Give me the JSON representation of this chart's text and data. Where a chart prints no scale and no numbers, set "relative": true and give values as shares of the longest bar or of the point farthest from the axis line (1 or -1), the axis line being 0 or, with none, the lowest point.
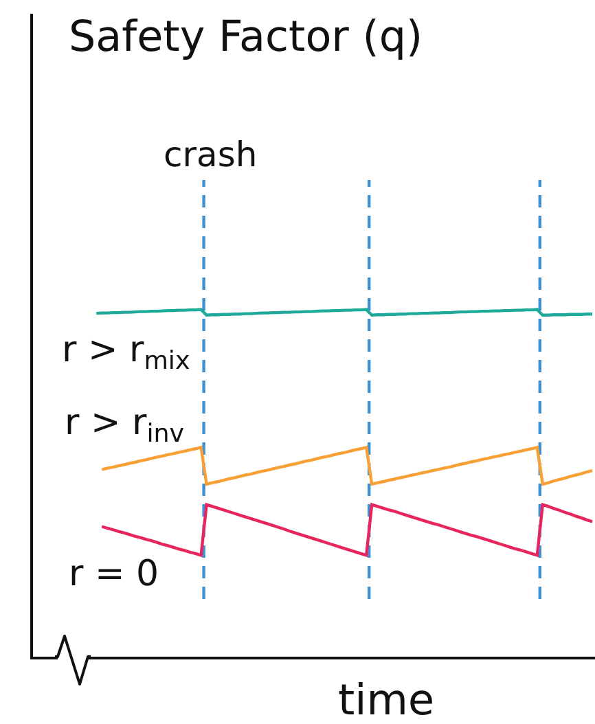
{
  "chart_data": {
    "type": "line",
    "title": "Safety Factor (q)",
    "xlabel": "time",
    "relative": true,
    "annotations": [
      "crash"
    ],
    "categories": [
      null,
      null,
      null,
      null,
      null,
      null,
      null,
      null,
      null,
      null,
      null,
      null,
      null,
      null,
      null,
      null,
      null,
      null,
      null,
      null,
      null,
      null,
      null,
      null,
      null,
      null,
      null,
      null,
      null,
      null,
      null,
      null,
      null,
      null,
      null,
      null,
      null,
      null,
      null,
      null,
      null,
      null,
      null,
      null,
      null,
      null,
      null,
      null,
      null,
      null,
      null,
      null,
      null,
      null,
      null,
      null,
      null,
      null,
      null,
      null,
      null,
      null,
      null,
      null,
      null,
      null,
      null,
      null,
      null,
      null,
      null,
      null,
      null,
      null,
      null,
      null,
      null,
      null,
      null,
      null,
      null,
      null,
      null,
      null,
      null,
      null,
      null,
      null,
      null,
      null,
      null,
      null,
      null,
      null,
      null,
      null,
      null,
      null,
      null,
      null,
      null,
      null
    ],
    "series": [
      {
        "name": "r > r$_{mix}$",
        "color": "#1fa99b",
        "values": [
          null,
          null,
          null,
          null,
          null,
          null,
          null,
          null,
          null,
          null,
          null,
          0.989,
          0.99,
          0.99,
          0.991,
          0.991,
          0.992,
          0.992,
          0.993,
          0.994,
          0.994,
          0.995,
          0.995,
          0.996,
          0.997,
          0.997,
          0.998,
          0.998,
          0.999,
          0.999,
          1,
          0.984,
          0.985,
          0.985,
          0.986,
          0.986,
          0.987,
          0.987,
          0.988,
          0.988,
          0.989,
          0.99,
          0.99,
          0.991,
          0.991,
          0.992,
          0.992,
          0.993,
          0.993,
          0.994,
          0.994,
          0.995,
          0.996,
          0.996,
          0.997,
          0.997,
          0.998,
          0.998,
          0.999,
          0.999,
          1,
          0.984,
          0.985,
          0.985,
          0.986,
          0.986,
          0.987,
          0.987,
          0.988,
          0.988,
          0.989,
          0.989,
          0.99,
          0.99,
          0.991,
          0.991,
          0.992,
          0.993,
          0.993,
          0.994,
          0.994,
          0.995,
          0.995,
          0.996,
          0.996,
          0.997,
          0.997,
          0.998,
          0.998,
          0.999,
          0.999,
          1,
          0.984,
          0.984,
          0.985,
          0.985,
          0.985,
          0.986,
          0.986,
          0.986,
          0.987,
          0.987
        ]
      },
      {
        "name": "r > r$_{inv}$",
        "color": "#f7a035",
        "values": [
          null,
          null,
          null,
          null,
          null,
          null,
          null,
          null,
          null,
          null,
          null,
          null,
          0.539,
          0.543,
          0.546,
          0.55,
          0.553,
          0.557,
          0.56,
          0.564,
          0.567,
          0.571,
          0.575,
          0.578,
          0.582,
          0.585,
          0.589,
          0.592,
          0.596,
          0.599,
          0.603,
          0.497,
          0.501,
          0.504,
          0.508,
          0.512,
          0.515,
          0.519,
          0.523,
          0.526,
          0.53,
          0.534,
          0.537,
          0.541,
          0.545,
          0.548,
          0.552,
          0.555,
          0.559,
          0.563,
          0.566,
          0.57,
          0.574,
          0.577,
          0.581,
          0.585,
          0.588,
          0.592,
          0.596,
          0.599,
          0.603,
          0.497,
          0.501,
          0.504,
          0.508,
          0.511,
          0.515,
          0.518,
          0.522,
          0.525,
          0.529,
          0.532,
          0.536,
          0.539,
          0.543,
          0.546,
          0.55,
          0.554,
          0.557,
          0.561,
          0.564,
          0.568,
          0.571,
          0.575,
          0.578,
          0.582,
          0.585,
          0.589,
          0.592,
          0.596,
          0.599,
          0.603,
          0.497,
          0.501,
          0.506,
          0.51,
          0.514,
          0.519,
          0.523,
          0.527,
          0.532,
          0.536
        ]
      },
      {
        "name": "r = 0",
        "color": "#e8265e",
        "values": [
          null,
          null,
          null,
          null,
          null,
          null,
          null,
          null,
          null,
          null,
          null,
          null,
          0.375,
          0.37,
          0.366,
          0.361,
          0.357,
          0.352,
          0.347,
          0.343,
          0.338,
          0.334,
          0.329,
          0.324,
          0.32,
          0.315,
          0.31,
          0.306,
          0.301,
          0.297,
          0.292,
          0.438,
          0.433,
          0.428,
          0.423,
          0.418,
          0.413,
          0.408,
          0.403,
          0.398,
          0.393,
          0.388,
          0.383,
          0.378,
          0.373,
          0.368,
          0.362,
          0.357,
          0.352,
          0.347,
          0.342,
          0.337,
          0.332,
          0.327,
          0.322,
          0.317,
          0.312,
          0.307,
          0.302,
          0.297,
          0.292,
          0.438,
          0.433,
          0.428,
          0.423,
          0.419,
          0.414,
          0.409,
          0.404,
          0.399,
          0.394,
          0.389,
          0.384,
          0.38,
          0.375,
          0.37,
          0.365,
          0.36,
          0.355,
          0.35,
          0.346,
          0.341,
          0.336,
          0.331,
          0.326,
          0.321,
          0.316,
          0.311,
          0.307,
          0.302,
          0.297,
          0.292,
          0.438,
          0.433,
          0.427,
          0.422,
          0.416,
          0.411,
          0.405,
          0.4,
          0.394,
          0.389
        ]
      }
    ]
  }
}
